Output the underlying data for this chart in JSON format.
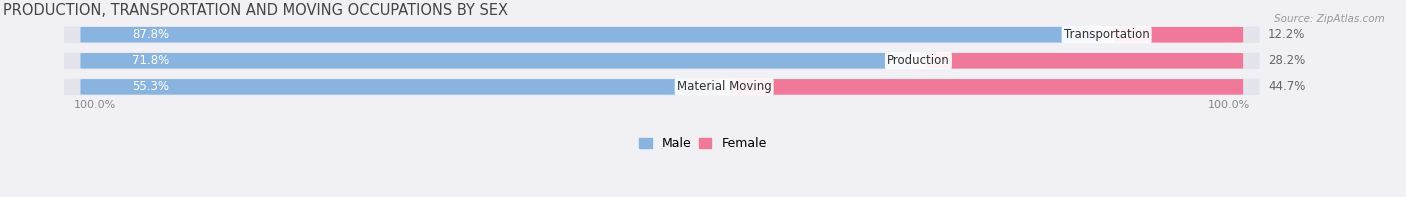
{
  "title": "PRODUCTION, TRANSPORTATION AND MOVING OCCUPATIONS BY SEX",
  "source": "Source: ZipAtlas.com",
  "categories": [
    "Transportation",
    "Production",
    "Material Moving"
  ],
  "male_pct": [
    87.8,
    71.8,
    55.3
  ],
  "female_pct": [
    12.2,
    28.2,
    44.7
  ],
  "male_color": "#8ab4e0",
  "female_color": "#f07898",
  "bar_bg_color": "#e4e4ec",
  "title_fontsize": 10.5,
  "source_fontsize": 7.5,
  "bar_label_fontsize": 8.5,
  "category_fontsize": 8.5,
  "axis_label_fontsize": 8,
  "legend_fontsize": 9,
  "bar_height": 0.62,
  "figsize": [
    14.06,
    1.97
  ],
  "dpi": 100,
  "axis_label_left": "100.0%",
  "axis_label_right": "100.0%",
  "xlim_left": -0.05,
  "xlim_right": 1.12
}
